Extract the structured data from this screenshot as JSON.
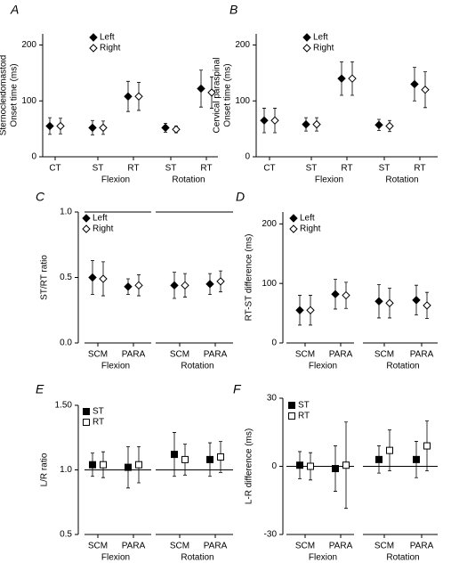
{
  "chart_data": [
    {
      "type": "errorbar",
      "letter": "A",
      "ylabel": [
        "Sternocleidomastoid",
        "Onset time (ms)"
      ],
      "groups": [
        {
          "categories": [
            "CT"
          ]
        },
        {
          "name": "Flexion",
          "categories": [
            "ST",
            "RT"
          ]
        },
        {
          "name": "Rotation",
          "categories": [
            "ST",
            "RT"
          ]
        }
      ],
      "series": [
        {
          "name": "Left",
          "marker": "diamond-filled",
          "color": "#000000",
          "values": [
            55,
            52,
            108,
            52,
            122
          ],
          "errors": [
            15,
            13,
            27,
            8,
            33
          ]
        },
        {
          "name": "Right",
          "marker": "diamond-open",
          "color": "#000000",
          "values": [
            55,
            52,
            108,
            49,
            115
          ],
          "errors": [
            14,
            12,
            25,
            6,
            28
          ]
        }
      ],
      "ylim": [
        0,
        220
      ],
      "yticks": [
        0,
        100,
        200
      ]
    },
    {
      "type": "errorbar",
      "letter": "B",
      "ylabel": [
        "Cervical paraspinal",
        "Onset time (ms)"
      ],
      "groups": [
        {
          "categories": [
            "CT"
          ]
        },
        {
          "name": "Flexion",
          "categories": [
            "ST",
            "RT"
          ]
        },
        {
          "name": "Rotation",
          "categories": [
            "ST",
            "RT"
          ]
        }
      ],
      "series": [
        {
          "name": "Left",
          "marker": "diamond-filled",
          "color": "#000000",
          "values": [
            65,
            58,
            140,
            57,
            130
          ],
          "errors": [
            22,
            12,
            30,
            10,
            30
          ]
        },
        {
          "name": "Right",
          "marker": "diamond-open",
          "color": "#000000",
          "values": [
            65,
            58,
            140,
            55,
            120
          ],
          "errors": [
            22,
            12,
            30,
            10,
            32
          ]
        }
      ],
      "ylim": [
        0,
        220
      ],
      "yticks": [
        0,
        100,
        200
      ]
    },
    {
      "type": "errorbar",
      "letter": "C",
      "ylabel": [
        "ST/RT ratio"
      ],
      "groups": [
        {
          "name": "Flexion",
          "categories": [
            "SCM",
            "PARA"
          ]
        },
        {
          "name": "Rotation",
          "categories": [
            "SCM",
            "PARA"
          ]
        }
      ],
      "series": [
        {
          "name": "Left",
          "marker": "diamond-filled",
          "color": "#000000",
          "values": [
            0.5,
            0.43,
            0.44,
            0.45
          ],
          "errors": [
            0.13,
            0.06,
            0.1,
            0.08
          ]
        },
        {
          "name": "Right",
          "marker": "diamond-open",
          "color": "#000000",
          "values": [
            0.49,
            0.44,
            0.44,
            0.47
          ],
          "errors": [
            0.13,
            0.08,
            0.09,
            0.08
          ]
        }
      ],
      "ylim": [
        0,
        1
      ],
      "yticks": [
        {
          "value": 0,
          "label": "0.0"
        },
        0.5,
        {
          "value": 1,
          "label": "1.0"
        }
      ],
      "reference_line": 1
    },
    {
      "type": "errorbar",
      "letter": "D",
      "ylabel": [
        "RT-ST difference (ms)"
      ],
      "groups": [
        {
          "name": "Flexion",
          "categories": [
            "SCM",
            "PARA"
          ]
        },
        {
          "name": "Rotation",
          "categories": [
            "SCM",
            "PARA"
          ]
        }
      ],
      "series": [
        {
          "name": "Left",
          "marker": "diamond-filled",
          "color": "#000000",
          "values": [
            55,
            82,
            70,
            72
          ],
          "errors": [
            25,
            25,
            28,
            25
          ]
        },
        {
          "name": "Right",
          "marker": "diamond-open",
          "color": "#000000",
          "values": [
            55,
            80,
            67,
            63
          ],
          "errors": [
            25,
            22,
            25,
            22
          ]
        }
      ],
      "ylim": [
        0,
        220
      ],
      "yticks": [
        0,
        100,
        200
      ]
    },
    {
      "type": "errorbar",
      "letter": "E",
      "ylabel": [
        "L/R ratio"
      ],
      "groups": [
        {
          "name": "Flexion",
          "categories": [
            "SCM",
            "PARA"
          ]
        },
        {
          "name": "Rotation",
          "categories": [
            "SCM",
            "PARA"
          ]
        }
      ],
      "series": [
        {
          "name": "ST",
          "marker": "square-filled",
          "color": "#000000",
          "values": [
            1.04,
            1.02,
            1.12,
            1.08
          ],
          "errors": [
            0.09,
            0.16,
            0.17,
            0.13
          ]
        },
        {
          "name": "RT",
          "marker": "square-open",
          "color": "#000000",
          "values": [
            1.04,
            1.04,
            1.08,
            1.1
          ],
          "errors": [
            0.1,
            0.14,
            0.12,
            0.12
          ]
        }
      ],
      "ylim": [
        0.5,
        1.5
      ],
      "yticks": [
        0.5,
        {
          "value": 1,
          "label": "1.0"
        },
        {
          "value": 1.5,
          "label": "1.50"
        }
      ],
      "reference_line": 1
    },
    {
      "type": "errorbar",
      "letter": "F",
      "ylabel": [
        "L-R difference (ms)"
      ],
      "groups": [
        {
          "name": "Flexion",
          "categories": [
            "SCM",
            "PARA"
          ]
        },
        {
          "name": "Rotation",
          "categories": [
            "SCM",
            "PARA"
          ]
        }
      ],
      "series": [
        {
          "name": "ST",
          "marker": "square-filled",
          "color": "#000000",
          "values": [
            0.5,
            -1,
            3,
            3
          ],
          "errors": [
            6,
            10,
            6,
            8
          ]
        },
        {
          "name": "RT",
          "marker": "square-open",
          "color": "#000000",
          "values": [
            0,
            0.5,
            7,
            9
          ],
          "errors": [
            6,
            19,
            9,
            11
          ]
        }
      ],
      "ylim": [
        -30,
        30
      ],
      "yticks": [
        -30,
        0,
        30
      ],
      "reference_line": 0
    }
  ]
}
